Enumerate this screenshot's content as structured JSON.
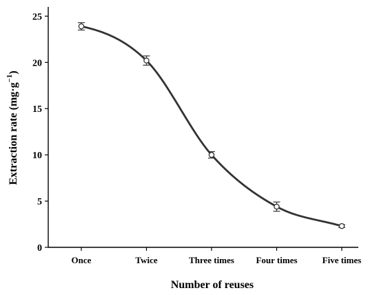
{
  "chart_data": {
    "type": "line",
    "title": "",
    "xlabel": "Number of reuses",
    "ylabel": "Extraction rate (mg·g",
    "ylabel_superscript": "−1",
    "ylabel_close": ")",
    "categories": [
      "Once",
      "Twice",
      "Three times",
      "Four times",
      "Five times"
    ],
    "series": [
      {
        "values": [
          23.9,
          20.2,
          10.0,
          4.4,
          2.3
        ],
        "errors": [
          0.4,
          0.5,
          0.35,
          0.5,
          0.15
        ]
      }
    ],
    "ylim": [
      0,
      26
    ],
    "yticks": [
      0,
      5,
      10,
      15,
      20,
      25
    ],
    "grid": false,
    "marker": "open-circle",
    "smooth": true,
    "line_color": "#333333"
  }
}
